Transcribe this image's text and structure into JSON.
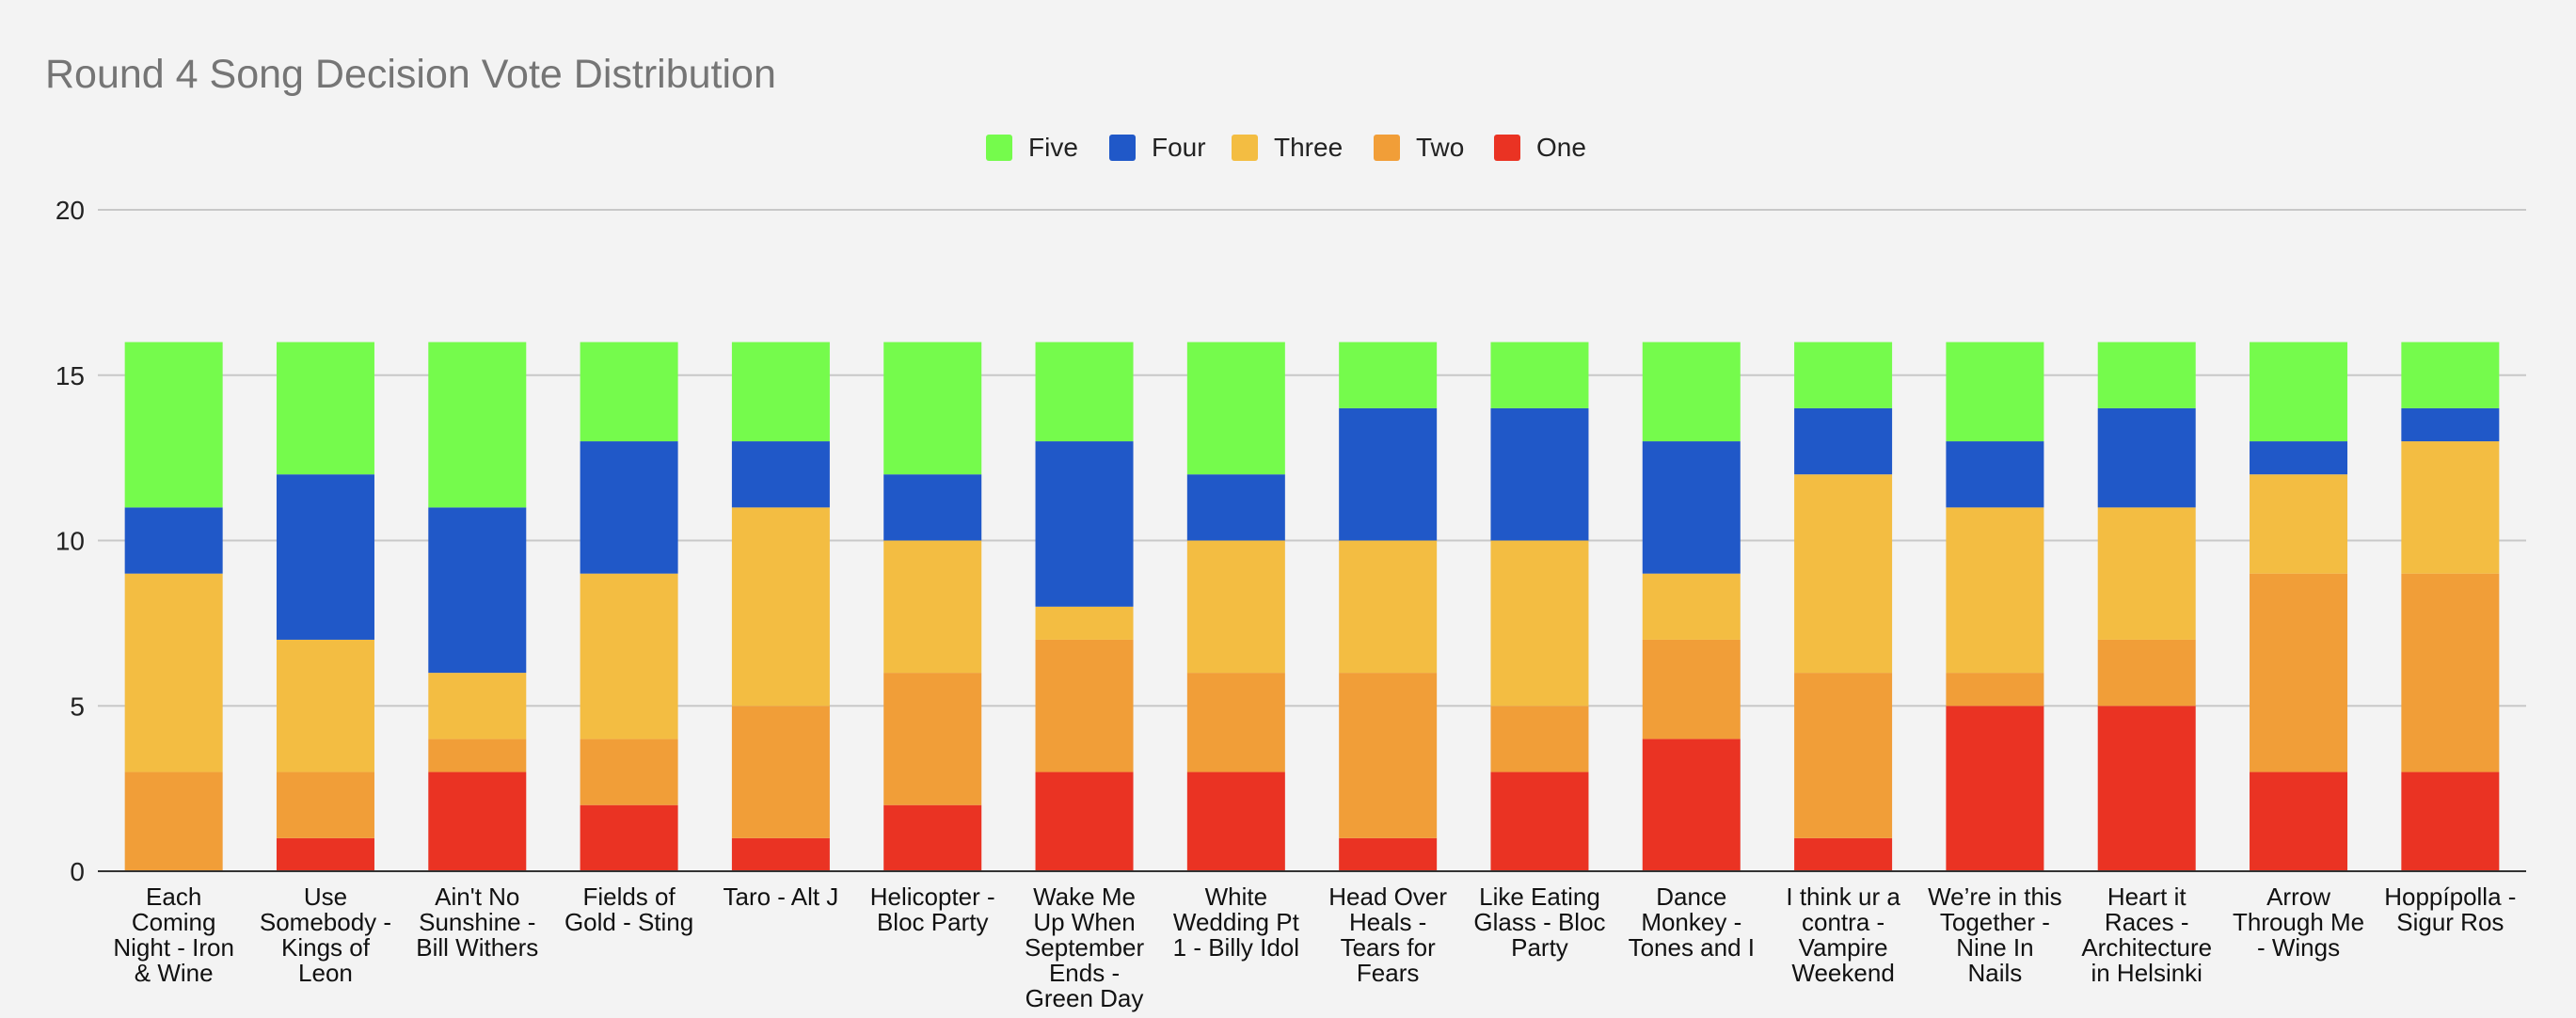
{
  "chart_data": {
    "type": "bar",
    "stacked": true,
    "title": "Round 4 Song Decision Vote Distribution",
    "xlabel": "",
    "ylabel": "",
    "ylim": [
      0,
      20
    ],
    "yticks": [
      0,
      5,
      10,
      15,
      20
    ],
    "grid": true,
    "legend_position": "top-center",
    "legend_order": [
      "Five",
      "Four",
      "Three",
      "Two",
      "One"
    ],
    "categories": [
      "Each Coming Night - Iron & Wine",
      "Use Somebody - Kings of Leon",
      "Ain't No Sunshine - Bill Withers",
      "Fields of Gold - Sting",
      "Taro - Alt J",
      "Helicopter - Bloc Party",
      "Wake Me Up When September Ends - Green Day",
      "White Wedding Pt 1 - Billy Idol",
      "Head Over Heals - Tears for Fears",
      "Like Eating Glass - Bloc Party",
      "Dance Monkey - Tones and I",
      "I think ur a contra - Vampire Weekend",
      "We’re in this Together - Nine In Nails",
      "Heart it Races - Architecture in Helsinki",
      "Arrow Through Me - Wings",
      "Hoppípolla - Sigur Ros"
    ],
    "category_lines": [
      [
        "Each",
        "Coming",
        "Night - Iron",
        "& Wine"
      ],
      [
        "Use",
        "Somebody -",
        "Kings of",
        "Leon"
      ],
      [
        "Ain't No",
        "Sunshine -",
        "Bill Withers"
      ],
      [
        "Fields of",
        "Gold - Sting"
      ],
      [
        "Taro - Alt J"
      ],
      [
        "Helicopter -",
        "Bloc Party"
      ],
      [
        "Wake Me",
        "Up When",
        "September",
        "Ends -",
        "Green Day"
      ],
      [
        "White",
        "Wedding Pt",
        "1 - Billy Idol"
      ],
      [
        "Head Over",
        "Heals -",
        "Tears for",
        "Fears"
      ],
      [
        "Like Eating",
        "Glass - Bloc",
        "Party"
      ],
      [
        "Dance",
        "Monkey -",
        "Tones and I"
      ],
      [
        "I think ur a",
        "contra -",
        "Vampire",
        "Weekend"
      ],
      [
        "We’re in this",
        "Together -",
        "Nine In",
        "Nails"
      ],
      [
        "Heart it",
        "Races -",
        "Architecture",
        "in Helsinki"
      ],
      [
        "Arrow",
        "Through Me",
        "- Wings"
      ],
      [
        "Hoppípolla -",
        "Sigur Ros"
      ]
    ],
    "series": [
      {
        "name": "One",
        "color": "#ea3323",
        "values": [
          0,
          1,
          3,
          2,
          1,
          2,
          3,
          3,
          1,
          3,
          4,
          1,
          5,
          5,
          3,
          3
        ]
      },
      {
        "name": "Two",
        "color": "#f19e38",
        "values": [
          3,
          2,
          1,
          2,
          4,
          4,
          4,
          3,
          5,
          2,
          3,
          5,
          1,
          2,
          6,
          6
        ]
      },
      {
        "name": "Three",
        "color": "#f3bd42",
        "values": [
          6,
          4,
          2,
          5,
          6,
          4,
          1,
          4,
          4,
          5,
          2,
          6,
          5,
          4,
          3,
          4
        ]
      },
      {
        "name": "Four",
        "color": "#2058c8",
        "values": [
          2,
          5,
          5,
          4,
          2,
          2,
          5,
          2,
          4,
          4,
          4,
          2,
          2,
          3,
          1,
          1
        ]
      },
      {
        "name": "Five",
        "color": "#75fb4c",
        "values": [
          5,
          4,
          5,
          3,
          3,
          4,
          3,
          4,
          2,
          2,
          3,
          2,
          3,
          2,
          3,
          2
        ]
      }
    ]
  }
}
